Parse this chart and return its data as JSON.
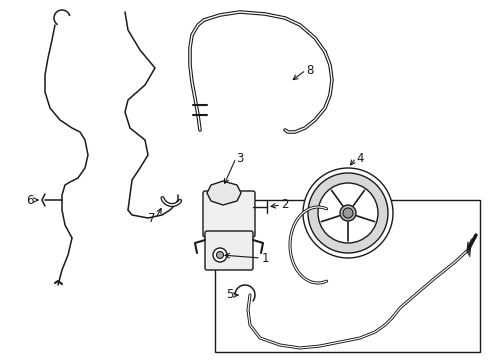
{
  "bg_color": "#ffffff",
  "lc": "#1a1a1a",
  "label_fontsize": 8.5,
  "figsize": [
    4.89,
    3.6
  ],
  "dpi": 100,
  "xlim": [
    0,
    489
  ],
  "ylim": [
    360,
    0
  ]
}
